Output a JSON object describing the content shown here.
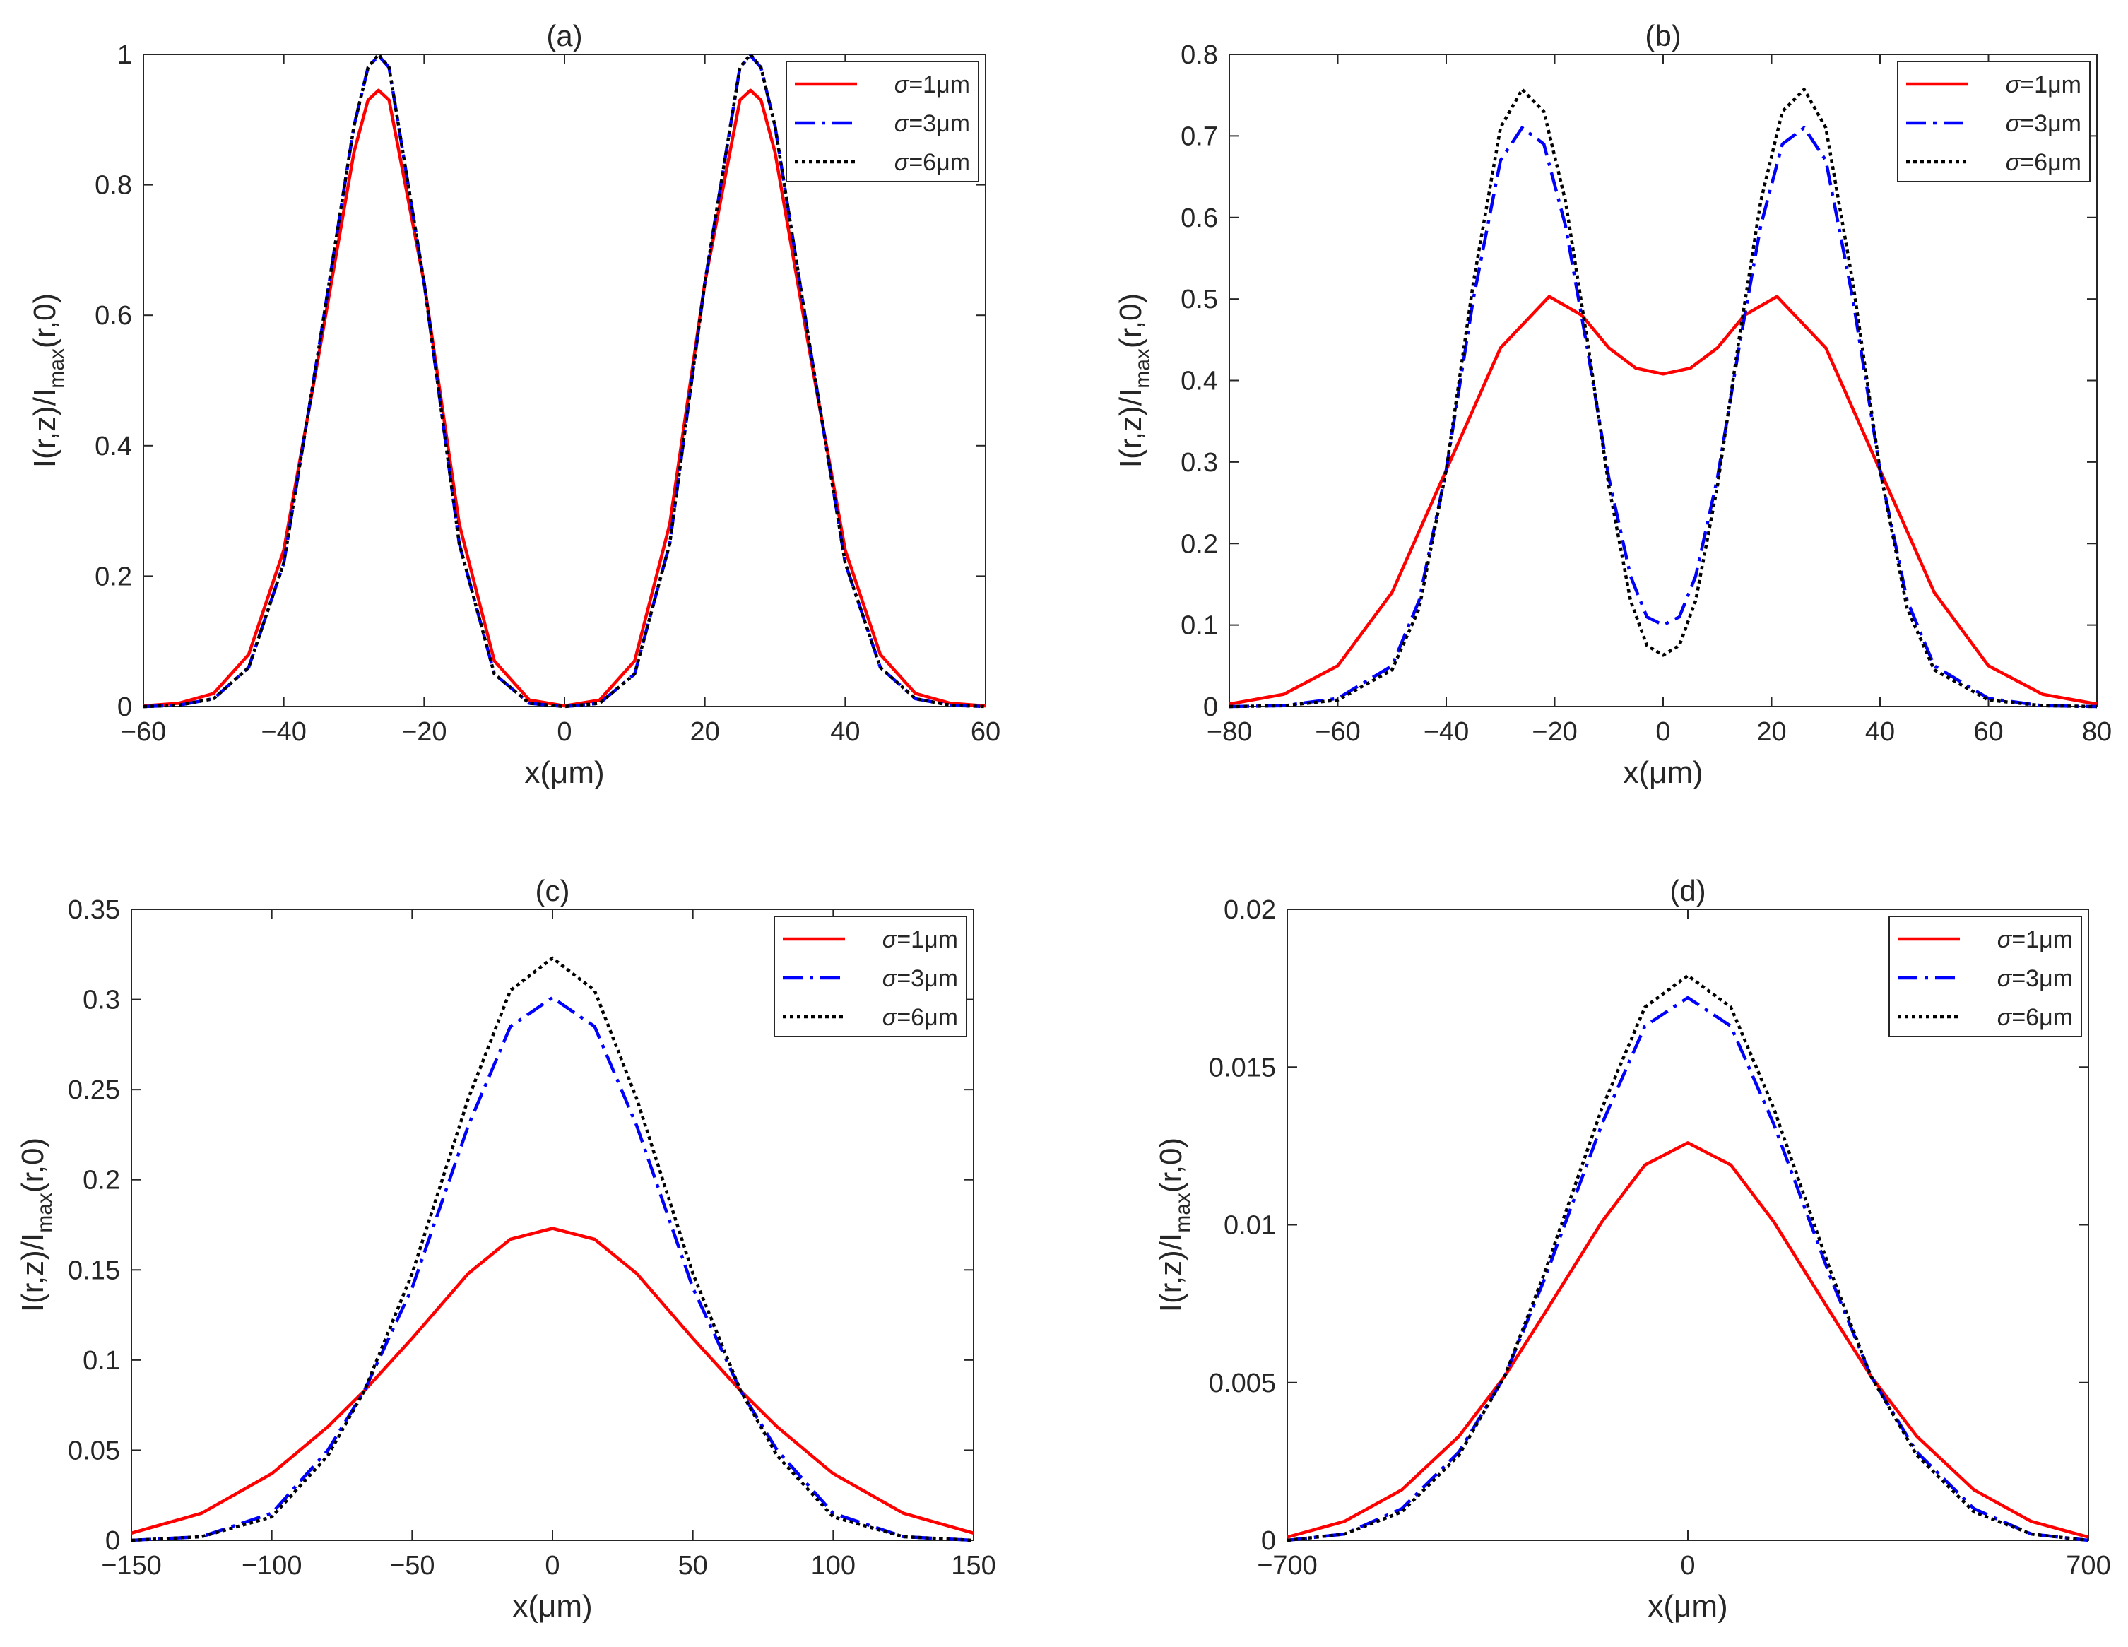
{
  "chart_data": [
    {
      "type": "line",
      "title": "(a)",
      "xlabel": "x(μm)",
      "ylabel": {
        "main": "I(r,z)/I",
        "sub": "max",
        "tail": "(r,0)"
      },
      "xlim": [
        -60,
        60
      ],
      "ylim": [
        0,
        1
      ],
      "xticks": [
        -60,
        -40,
        -20,
        0,
        20,
        40,
        60
      ],
      "xtick_labels": [
        "−60",
        "−40",
        "−20",
        "0",
        "20",
        "40",
        "60"
      ],
      "yticks": [
        0,
        0.2,
        0.4,
        0.6,
        0.8,
        1
      ],
      "ytick_labels": [
        "0",
        "0.2",
        "0.4",
        "0.6",
        "0.8",
        "1"
      ],
      "legend_position": "top-right",
      "series": [
        {
          "name": "σ=1μm",
          "sigma_symbol": "σ",
          "sigma_value": "=1μm",
          "color": "#ff0000",
          "style": "solid",
          "x": [
            -60,
            -55,
            -50,
            -45,
            -40,
            -35,
            -30,
            -28,
            -26.5,
            -25,
            -20,
            -15,
            -10,
            -5,
            0,
            5,
            10,
            15,
            20,
            25,
            26.5,
            28,
            30,
            35,
            40,
            45,
            50,
            55,
            60
          ],
          "y": [
            0.001,
            0.005,
            0.02,
            0.08,
            0.24,
            0.54,
            0.85,
            0.93,
            0.945,
            0.93,
            0.65,
            0.28,
            0.07,
            0.01,
            0.001,
            0.01,
            0.07,
            0.28,
            0.65,
            0.93,
            0.945,
            0.93,
            0.85,
            0.54,
            0.24,
            0.08,
            0.02,
            0.005,
            0.001
          ]
        },
        {
          "name": "σ=3μm",
          "sigma_symbol": "σ",
          "sigma_value": "=3μm",
          "color": "#0000ff",
          "style": "dashdot",
          "x": [
            -60,
            -55,
            -50,
            -45,
            -40,
            -35,
            -30,
            -28,
            -26.5,
            -25,
            -20,
            -15,
            -10,
            -5,
            0,
            5,
            10,
            15,
            20,
            25,
            26.5,
            28,
            30,
            35,
            40,
            45,
            50,
            55,
            60
          ],
          "y": [
            0,
            0.002,
            0.012,
            0.06,
            0.22,
            0.55,
            0.89,
            0.98,
            0.998,
            0.98,
            0.65,
            0.25,
            0.05,
            0.005,
            0,
            0.005,
            0.05,
            0.25,
            0.65,
            0.98,
            0.998,
            0.98,
            0.89,
            0.55,
            0.22,
            0.06,
            0.012,
            0.002,
            0
          ]
        },
        {
          "name": "σ=6μm",
          "sigma_symbol": "σ",
          "sigma_value": "=6μm",
          "color": "#000000",
          "style": "dotted",
          "x": [
            -60,
            -55,
            -50,
            -45,
            -40,
            -35,
            -30,
            -28,
            -26.5,
            -25,
            -20,
            -15,
            -10,
            -5,
            0,
            5,
            10,
            15,
            20,
            25,
            26.5,
            28,
            30,
            35,
            40,
            45,
            50,
            55,
            60
          ],
          "y": [
            0,
            0.002,
            0.012,
            0.06,
            0.22,
            0.55,
            0.89,
            0.98,
            1.0,
            0.98,
            0.65,
            0.25,
            0.05,
            0.005,
            0,
            0.005,
            0.05,
            0.25,
            0.65,
            0.98,
            1.0,
            0.98,
            0.89,
            0.55,
            0.22,
            0.06,
            0.012,
            0.002,
            0
          ]
        }
      ]
    },
    {
      "type": "line",
      "title": "(b)",
      "xlabel": "x(μm)",
      "ylabel": {
        "main": "I(r,z)/I",
        "sub": "max",
        "tail": "(r,0)"
      },
      "xlim": [
        -80,
        80
      ],
      "ylim": [
        0,
        0.8
      ],
      "xticks": [
        -80,
        -60,
        -40,
        -20,
        0,
        20,
        40,
        60,
        80
      ],
      "xtick_labels": [
        "−80",
        "−60",
        "−40",
        "−20",
        "0",
        "20",
        "40",
        "60",
        "80"
      ],
      "yticks": [
        0,
        0.1,
        0.2,
        0.3,
        0.4,
        0.5,
        0.6,
        0.7,
        0.8
      ],
      "ytick_labels": [
        "0",
        "0.1",
        "0.2",
        "0.3",
        "0.4",
        "0.5",
        "0.6",
        "0.7",
        "0.8"
      ],
      "legend_position": "top-right",
      "series": [
        {
          "name": "σ=1μm",
          "sigma_symbol": "σ",
          "sigma_value": "=1μm",
          "color": "#ff0000",
          "style": "solid",
          "x": [
            -80,
            -70,
            -60,
            -50,
            -40,
            -30,
            -21,
            -15,
            -10,
            -5,
            0,
            5,
            10,
            15,
            21,
            30,
            40,
            50,
            60,
            70,
            80
          ],
          "y": [
            0.003,
            0.015,
            0.05,
            0.14,
            0.29,
            0.44,
            0.503,
            0.48,
            0.44,
            0.415,
            0.408,
            0.415,
            0.44,
            0.48,
            0.503,
            0.44,
            0.29,
            0.14,
            0.05,
            0.015,
            0.003
          ]
        },
        {
          "name": "σ=3μm",
          "sigma_symbol": "σ",
          "sigma_value": "=3μm",
          "color": "#0000ff",
          "style": "dashdot",
          "x": [
            -80,
            -70,
            -60,
            -50,
            -45,
            -40,
            -35,
            -30,
            -26,
            -22,
            -18,
            -14,
            -10,
            -6,
            -3,
            0,
            3,
            6,
            10,
            14,
            18,
            22,
            26,
            30,
            35,
            40,
            45,
            50,
            60,
            70,
            80
          ],
          "y": [
            0,
            0.001,
            0.01,
            0.05,
            0.13,
            0.29,
            0.5,
            0.67,
            0.71,
            0.69,
            0.59,
            0.44,
            0.28,
            0.16,
            0.11,
            0.1,
            0.11,
            0.16,
            0.28,
            0.44,
            0.59,
            0.69,
            0.71,
            0.67,
            0.5,
            0.29,
            0.13,
            0.05,
            0.01,
            0.001,
            0
          ]
        },
        {
          "name": "σ=6μm",
          "sigma_symbol": "σ",
          "sigma_value": "=6μm",
          "color": "#000000",
          "style": "dotted",
          "x": [
            -80,
            -70,
            -60,
            -50,
            -45,
            -40,
            -35,
            -30,
            -26,
            -22,
            -18,
            -14,
            -10,
            -6,
            -3,
            0,
            3,
            6,
            10,
            14,
            18,
            22,
            26,
            30,
            35,
            40,
            45,
            50,
            60,
            70,
            80
          ],
          "y": [
            0,
            0.001,
            0.008,
            0.045,
            0.12,
            0.29,
            0.52,
            0.71,
            0.757,
            0.73,
            0.62,
            0.45,
            0.27,
            0.13,
            0.075,
            0.063,
            0.075,
            0.13,
            0.27,
            0.45,
            0.62,
            0.73,
            0.757,
            0.71,
            0.52,
            0.29,
            0.12,
            0.045,
            0.008,
            0.001,
            0
          ]
        }
      ]
    },
    {
      "type": "line",
      "title": "(c)",
      "xlabel": "x(μm)",
      "ylabel": {
        "main": "I(r,z)/I",
        "sub": "max",
        "tail": "(r,0)"
      },
      "xlim": [
        -150,
        150
      ],
      "ylim": [
        0,
        0.35
      ],
      "xticks": [
        -150,
        -100,
        -50,
        0,
        50,
        100,
        150
      ],
      "xtick_labels": [
        "−150",
        "−100",
        "−50",
        "0",
        "50",
        "100",
        "150"
      ],
      "yticks": [
        0,
        0.05,
        0.1,
        0.15,
        0.2,
        0.25,
        0.3,
        0.35
      ],
      "ytick_labels": [
        "0",
        "0.05",
        "0.1",
        "0.15",
        "0.2",
        "0.25",
        "0.3",
        "0.35"
      ],
      "legend_position": "top-right",
      "series": [
        {
          "name": "σ=1μm",
          "sigma_symbol": "σ",
          "sigma_value": "=1μm",
          "color": "#ff0000",
          "style": "solid",
          "x": [
            -150,
            -125,
            -100,
            -80,
            -67,
            -50,
            -30,
            -15,
            0,
            15,
            30,
            50,
            67,
            80,
            100,
            125,
            150
          ],
          "y": [
            0.004,
            0.015,
            0.037,
            0.063,
            0.083,
            0.112,
            0.148,
            0.167,
            0.173,
            0.167,
            0.148,
            0.112,
            0.083,
            0.063,
            0.037,
            0.015,
            0.004
          ]
        },
        {
          "name": "σ=3μm",
          "sigma_symbol": "σ",
          "sigma_value": "=3μm",
          "color": "#0000ff",
          "style": "dashdot",
          "x": [
            -150,
            -125,
            -100,
            -80,
            -67,
            -50,
            -30,
            -15,
            0,
            15,
            30,
            50,
            67,
            80,
            100,
            125,
            150
          ],
          "y": [
            0,
            0.002,
            0.015,
            0.05,
            0.083,
            0.14,
            0.23,
            0.285,
            0.301,
            0.285,
            0.23,
            0.14,
            0.083,
            0.05,
            0.015,
            0.002,
            0
          ]
        },
        {
          "name": "σ=6μm",
          "sigma_symbol": "σ",
          "sigma_value": "=6μm",
          "color": "#000000",
          "style": "dotted",
          "x": [
            -150,
            -125,
            -100,
            -80,
            -67,
            -50,
            -30,
            -15,
            0,
            15,
            30,
            50,
            67,
            80,
            100,
            125,
            150
          ],
          "y": [
            0,
            0.002,
            0.013,
            0.047,
            0.083,
            0.148,
            0.245,
            0.305,
            0.323,
            0.305,
            0.245,
            0.148,
            0.083,
            0.047,
            0.013,
            0.002,
            0
          ]
        }
      ]
    },
    {
      "type": "line",
      "title": "(d)",
      "xlabel": "x(μm)",
      "ylabel": {
        "main": "I(r,z)/I",
        "sub": "max",
        "tail": "(r,0)"
      },
      "xlim": [
        -700,
        700
      ],
      "ylim": [
        0,
        0.02
      ],
      "xticks": [
        -700,
        0,
        700
      ],
      "xtick_labels": [
        "−700",
        "0",
        "700"
      ],
      "yticks": [
        0,
        0.005,
        0.01,
        0.015,
        0.02
      ],
      "ytick_labels": [
        "0",
        "0.005",
        "0.01",
        "0.015",
        "0.02"
      ],
      "legend_position": "top-right",
      "series": [
        {
          "name": "σ=1μm",
          "sigma_symbol": "σ",
          "sigma_value": "=1μm",
          "color": "#ff0000",
          "style": "solid",
          "x": [
            -700,
            -600,
            -500,
            -400,
            -320,
            -250,
            -150,
            -75,
            0,
            75,
            150,
            250,
            320,
            400,
            500,
            600,
            700
          ],
          "y": [
            0.0001,
            0.0006,
            0.0016,
            0.0033,
            0.0052,
            0.0072,
            0.0101,
            0.0119,
            0.0126,
            0.0119,
            0.0101,
            0.0072,
            0.0052,
            0.0033,
            0.0016,
            0.0006,
            0.0001
          ]
        },
        {
          "name": "σ=3μm",
          "sigma_symbol": "σ",
          "sigma_value": "=3μm",
          "color": "#0000ff",
          "style": "dashdot",
          "x": [
            -700,
            -600,
            -500,
            -400,
            -320,
            -250,
            -150,
            -75,
            0,
            75,
            150,
            250,
            320,
            400,
            500,
            600,
            700
          ],
          "y": [
            0,
            0.0002,
            0.001,
            0.0028,
            0.0052,
            0.0083,
            0.0132,
            0.0163,
            0.0172,
            0.0163,
            0.0132,
            0.0083,
            0.0052,
            0.0028,
            0.001,
            0.0002,
            0
          ]
        },
        {
          "name": "σ=6μm",
          "sigma_symbol": "σ",
          "sigma_value": "=6μm",
          "color": "#000000",
          "style": "dotted",
          "x": [
            -700,
            -600,
            -500,
            -400,
            -320,
            -250,
            -150,
            -75,
            0,
            75,
            150,
            250,
            320,
            400,
            500,
            600,
            700
          ],
          "y": [
            0,
            0.0002,
            0.0009,
            0.0027,
            0.0052,
            0.0085,
            0.0137,
            0.0169,
            0.0179,
            0.0169,
            0.0137,
            0.0085,
            0.0052,
            0.0027,
            0.0009,
            0.0002,
            0
          ]
        }
      ]
    }
  ]
}
